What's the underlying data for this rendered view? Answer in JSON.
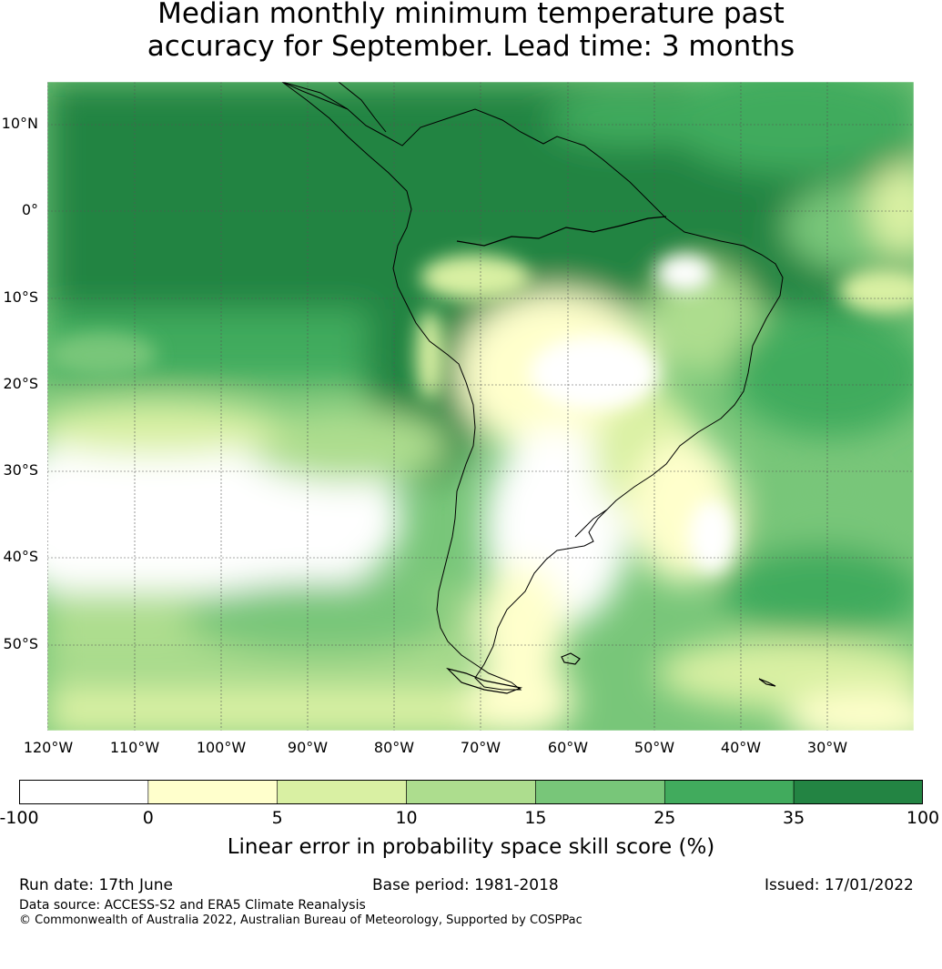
{
  "title": {
    "line1": "Median monthly minimum temperature past",
    "line2": "accuracy for September. Lead time: 3 months"
  },
  "map": {
    "lat_labels": [
      "10°N",
      "0°",
      "10°S",
      "20°S",
      "30°S",
      "40°S",
      "50°S"
    ],
    "lon_labels": [
      "120°W",
      "110°W",
      "100°W",
      "90°W",
      "80°W",
      "70°W",
      "60°W",
      "50°W",
      "40°W",
      "30°W"
    ],
    "region": "South America"
  },
  "colorbar": {
    "ticks": [
      "-100",
      "0",
      "5",
      "10",
      "15",
      "25",
      "35",
      "100"
    ],
    "colors": [
      "#ffffff",
      "#ffffcc",
      "#d9f0a3",
      "#addd8e",
      "#78c679",
      "#41ab5d",
      "#238443"
    ],
    "label": "Linear error in probability space skill score (%)"
  },
  "footer": {
    "run_date": "Run date: 17th June",
    "base_period": "Base period: 1981-2018",
    "issued": "Issued: 17/01/2022",
    "data_source": "Data source: ACCESS-S2 and ERA5 Climate Reanalysis",
    "copyright": "© Commonwealth of Australia 2022, Australian Bureau of Meteorology, Supported by COSPPac"
  }
}
